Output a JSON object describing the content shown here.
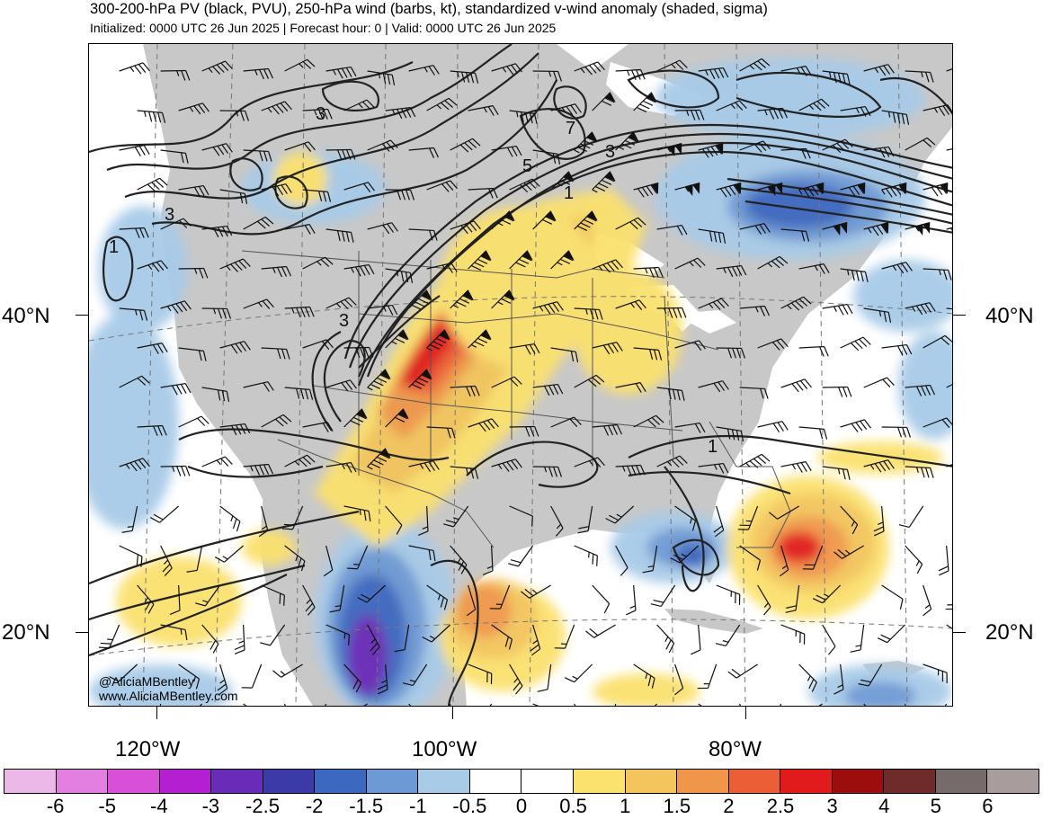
{
  "header": {
    "title": "300-200-hPa PV (black, PVU), 250-hPa wind (barbs, kt), standardized v-wind anomaly (shaded, sigma)",
    "subtitle": "Initialized: 0000 UTC 26 Jun 2025 | Forecast hour: 0 | Valid: 0000 UTC 26 Jun 2025"
  },
  "map": {
    "lat_labels": [
      "40°N",
      "20°N"
    ],
    "lon_labels": [
      "120°W",
      "100°W",
      "80°W"
    ],
    "contour_labels": [
      "3",
      "7",
      "5",
      "3",
      "1",
      "3",
      "1",
      "3",
      "1"
    ],
    "credit": {
      "handle": "@AliciaMBentley",
      "site": "www.AliciaMBentley.com"
    }
  },
  "colorbar": {
    "labels": [
      "-6",
      "-5",
      "-4",
      "-3",
      "-2.5",
      "-2",
      "-1.5",
      "-1",
      "-0.5",
      "0",
      "0.5",
      "1",
      "1.5",
      "2",
      "2.5",
      "3",
      "4",
      "5",
      "6"
    ],
    "colors": [
      "#ecb8e8",
      "#e37fe0",
      "#d84fd8",
      "#b51fd2",
      "#6a2cb8",
      "#3c3aa8",
      "#3c68c0",
      "#6d99d4",
      "#a8cbe8",
      "#ffffff",
      "#ffffff",
      "#fbe16e",
      "#f3c55c",
      "#f0964a",
      "#ec5e36",
      "#e11b1b",
      "#9c0d0d",
      "#6f2a2a",
      "#766a6a",
      "#a89c9c"
    ]
  }
}
